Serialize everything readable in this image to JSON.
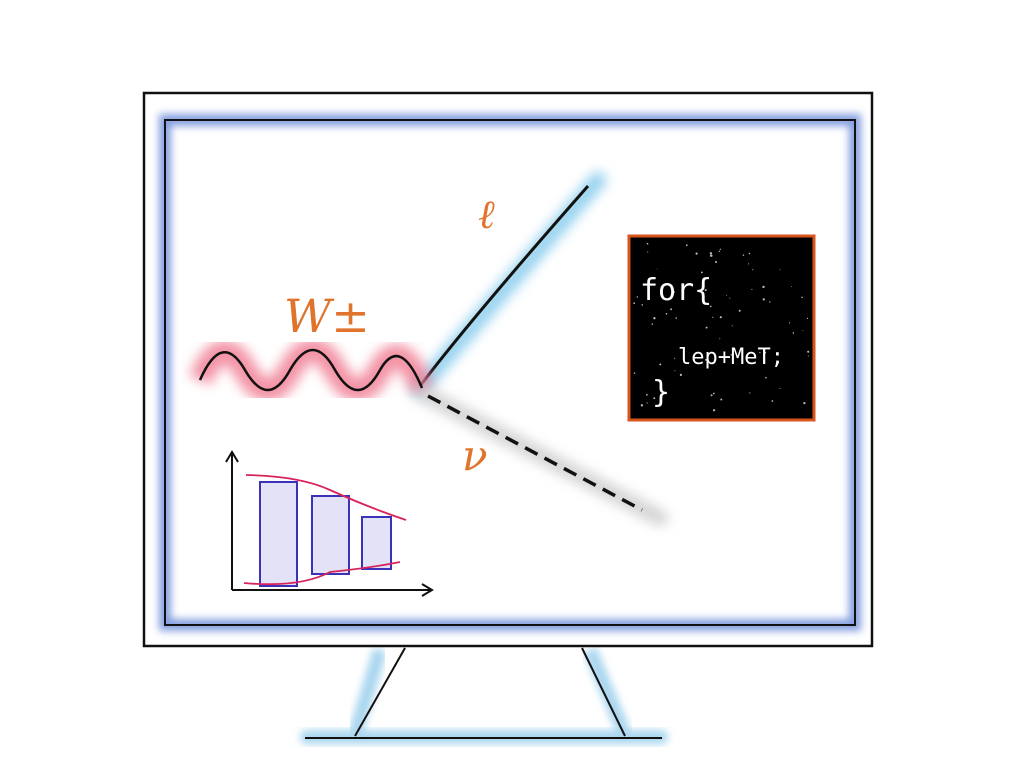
{
  "labels": {
    "boson": "W±",
    "lepton": "ℓ",
    "neutrino": "ν"
  },
  "code_panel": {
    "line1": "for{",
    "line2": "lep+MeT;",
    "line3": "}"
  },
  "colors": {
    "screen_glow": "#5b7fd6",
    "lepton_glow": "#7fc8ec",
    "boson_glow": "#f07890",
    "label_orange": "#e0742c",
    "code_border": "#d8541c",
    "code_bg": "#000000",
    "histogram_bar": "#e4e2f6",
    "histogram_edge": "#3a32b8",
    "histogram_band": "#d8245a"
  },
  "icons": {
    "monitor": "monitor-icon",
    "histogram": "histogram-icon"
  }
}
